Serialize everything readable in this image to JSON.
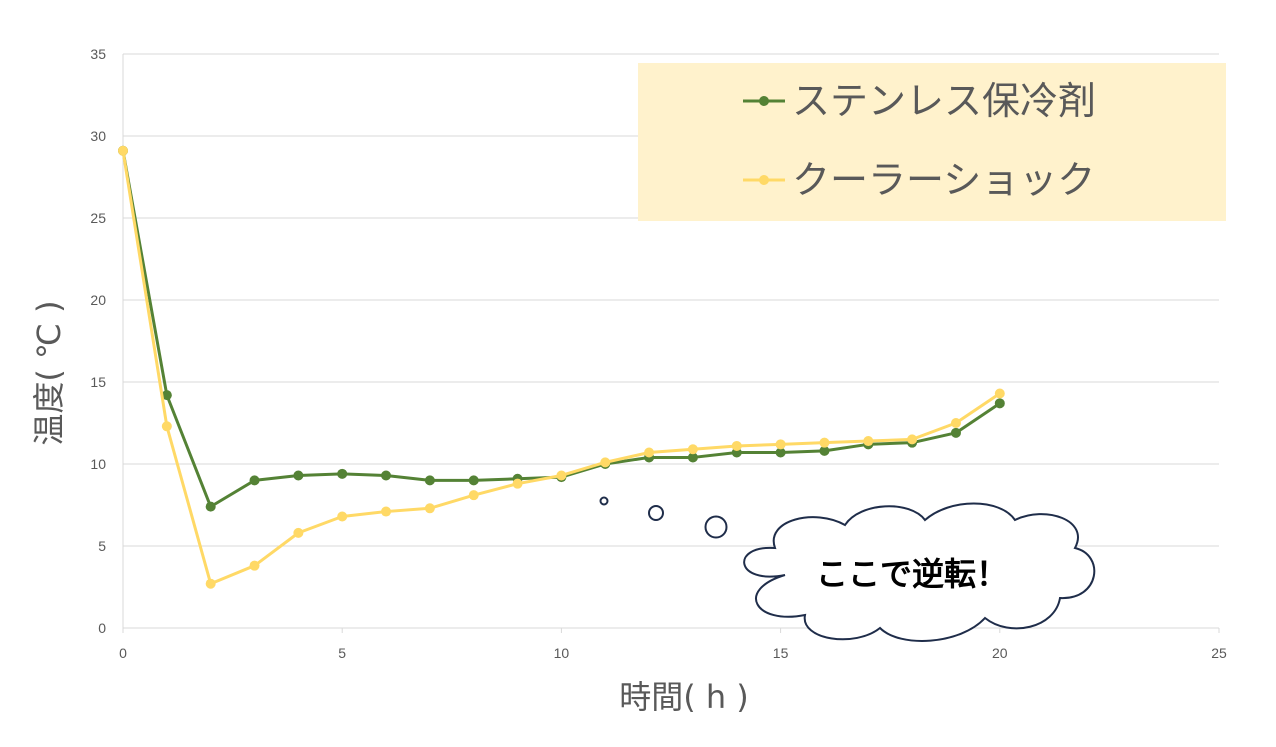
{
  "chart_data": {
    "type": "line",
    "xlabel": "時間( h )",
    "ylabel": "温度( ℃ )",
    "xlim": [
      0,
      25
    ],
    "ylim": [
      0,
      35
    ],
    "x_ticks": [
      "0",
      "5",
      "10",
      "15",
      "20",
      "25"
    ],
    "y_ticks": [
      "0",
      "5",
      "10",
      "15",
      "20",
      "25",
      "30",
      "35"
    ],
    "grid": true,
    "legend_position": "top-right",
    "legend_background": "#fff2cc",
    "series": [
      {
        "name": "ステンレス保冷剤",
        "color": "#548235",
        "x": [
          0,
          1,
          2,
          3,
          4,
          5,
          6,
          7,
          8,
          9,
          10,
          11,
          12,
          13,
          14,
          15,
          16,
          17,
          18,
          19,
          20
        ],
        "y": [
          29.1,
          14.2,
          7.4,
          9.0,
          9.3,
          9.4,
          9.3,
          9.0,
          9.0,
          9.1,
          9.2,
          10.0,
          10.4,
          10.4,
          10.7,
          10.7,
          10.8,
          11.2,
          11.3,
          11.9,
          13.7
        ]
      },
      {
        "name": "クーラーショック",
        "color": "#ffd966",
        "x": [
          0,
          1,
          2,
          3,
          4,
          5,
          6,
          7,
          8,
          9,
          10,
          11,
          12,
          13,
          14,
          15,
          16,
          17,
          18,
          19,
          20
        ],
        "y": [
          29.1,
          12.3,
          2.7,
          3.8,
          5.8,
          6.8,
          7.1,
          7.3,
          8.1,
          8.8,
          9.3,
          10.1,
          10.7,
          10.9,
          11.1,
          11.2,
          11.3,
          11.4,
          11.5,
          12.5,
          14.3
        ]
      }
    ],
    "annotation": "ここで逆転！"
  }
}
